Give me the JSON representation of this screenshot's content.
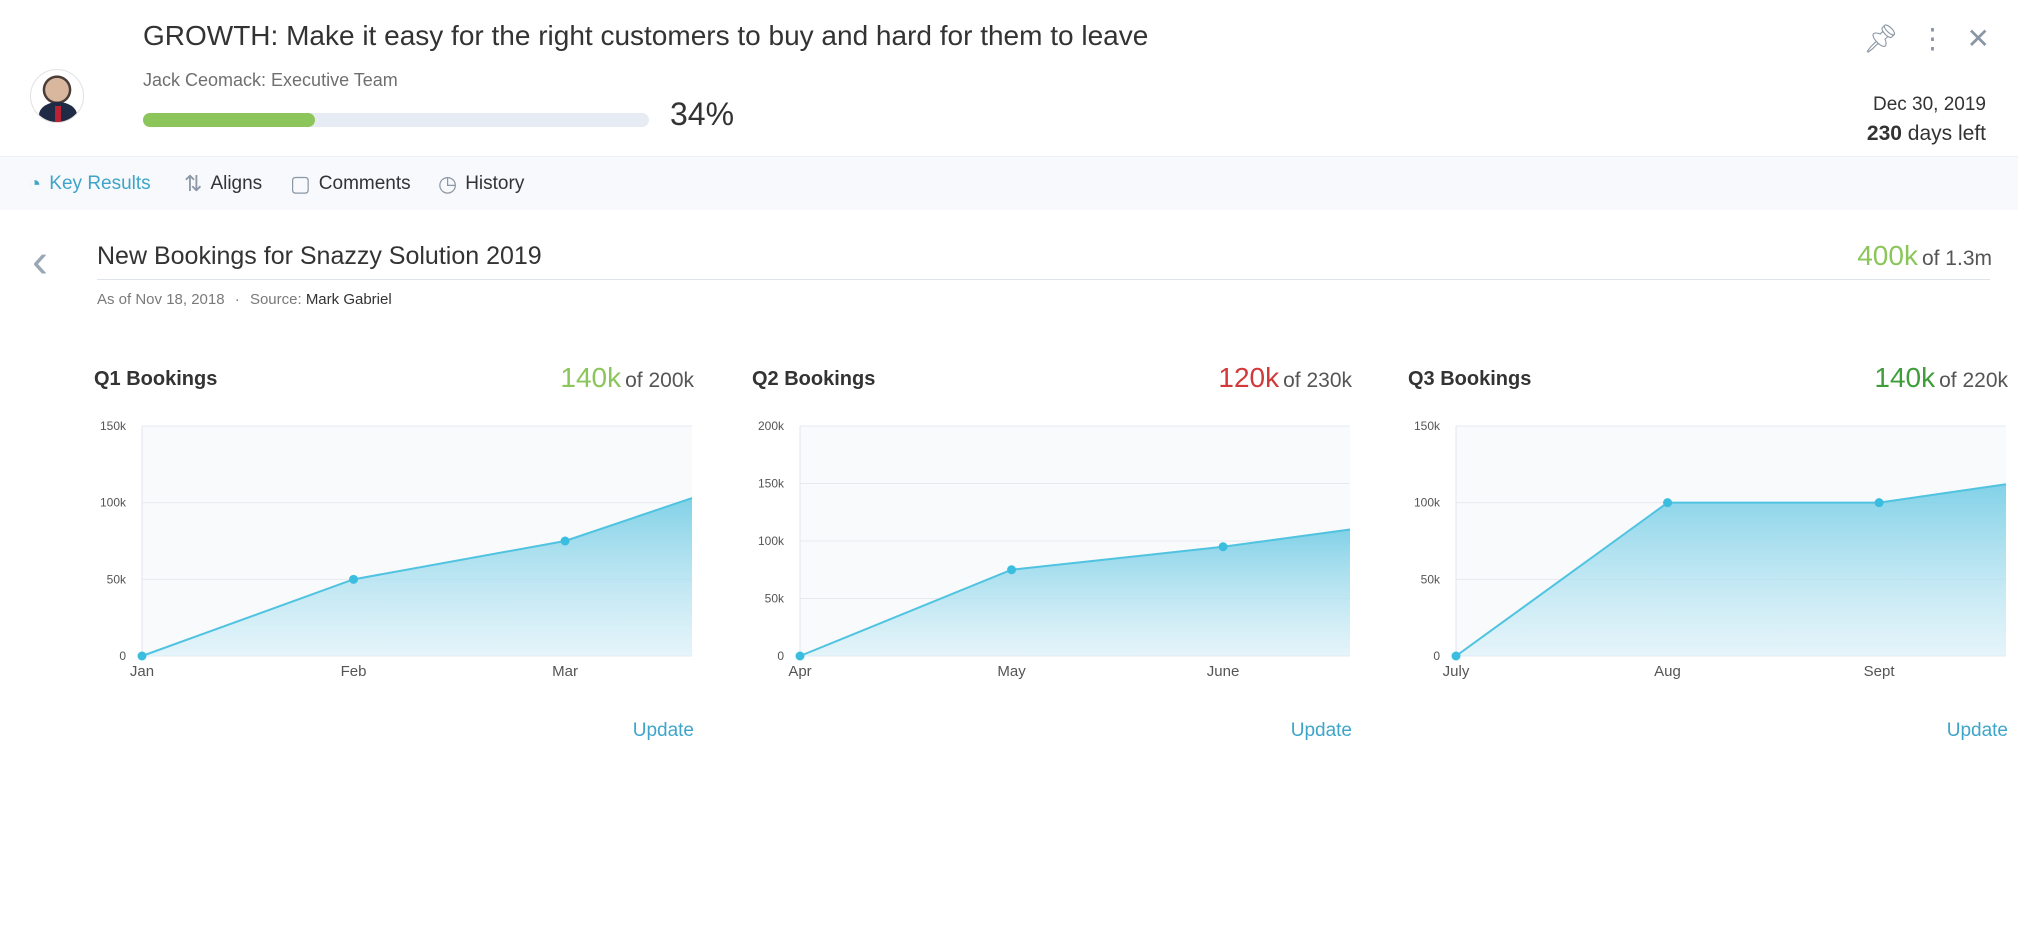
{
  "header": {
    "title": "GROWTH: Make it easy for the right customers to buy and hard for them to leave",
    "owner": "Jack Ceomack: Executive Team",
    "progress_pct": 34,
    "progress_text": "34%",
    "due_date": "Dec 30, 2019",
    "days_left_num": "230",
    "days_left_text": "days left",
    "icons": [
      "pin-icon",
      "more-vertical-icon",
      "close-icon"
    ]
  },
  "tabs": [
    {
      "label": "Key Results",
      "icon": "pie-chart-icon",
      "active": true
    },
    {
      "label": "Aligns",
      "icon": "align-arrows-icon",
      "active": false
    },
    {
      "label": "Comments",
      "icon": "comment-icon",
      "active": false
    },
    {
      "label": "History",
      "icon": "clock-icon",
      "active": false
    }
  ],
  "key_result": {
    "title": "New Bookings for Snazzy Solution 2019",
    "value": "400k",
    "target": "of 1.3m",
    "as_of": "As of Nov 18, 2018",
    "separator": "·",
    "source_label": "Source:",
    "source_name": "Mark Gabriel"
  },
  "colors": {
    "accent": "#3ea5c9",
    "progress_green": "#8cc65a",
    "on_track_green": "#3f9e3a",
    "behind_red": "#d2393a",
    "series_line": "#4fc3e0"
  },
  "update_label": "Update",
  "chart_data": [
    {
      "type": "area",
      "title": "Q1 Bookings",
      "value_label": "140k",
      "target_label": "of 200k",
      "value_color": "#8cc65a",
      "categories": [
        "Jan",
        "Feb",
        "Mar"
      ],
      "x": [
        0,
        1,
        2,
        2.6
      ],
      "values": [
        0,
        50000,
        75000,
        103000
      ],
      "marker_count": 3,
      "ylim": [
        0,
        150000
      ],
      "yticks": [
        0,
        50000,
        100000,
        150000
      ],
      "ytick_labels": [
        "0",
        "50k",
        "100k",
        "150k"
      ],
      "grid": true
    },
    {
      "type": "area",
      "title": "Q2 Bookings",
      "value_label": "120k",
      "target_label": "of 230k",
      "value_color": "#d2393a",
      "categories": [
        "Apr",
        "May",
        "June"
      ],
      "x": [
        0,
        1,
        2,
        2.6
      ],
      "values": [
        0,
        75000,
        95000,
        110000
      ],
      "marker_count": 3,
      "ylim": [
        0,
        200000
      ],
      "yticks": [
        0,
        50000,
        100000,
        150000,
        200000
      ],
      "ytick_labels": [
        "0",
        "50k",
        "100k",
        "150k",
        "200k"
      ],
      "grid": true
    },
    {
      "type": "area",
      "title": "Q3 Bookings",
      "value_label": "140k",
      "target_label": "of 220k",
      "value_color": "#3f9e3a",
      "categories": [
        "July",
        "Aug",
        "Sept"
      ],
      "x": [
        0,
        1,
        2,
        2.6
      ],
      "values": [
        0,
        100000,
        100000,
        112000
      ],
      "marker_count": 3,
      "ylim": [
        0,
        150000
      ],
      "yticks": [
        0,
        50000,
        100000,
        150000
      ],
      "ytick_labels": [
        "0",
        "50k",
        "100k",
        "150k"
      ],
      "grid": true
    }
  ]
}
